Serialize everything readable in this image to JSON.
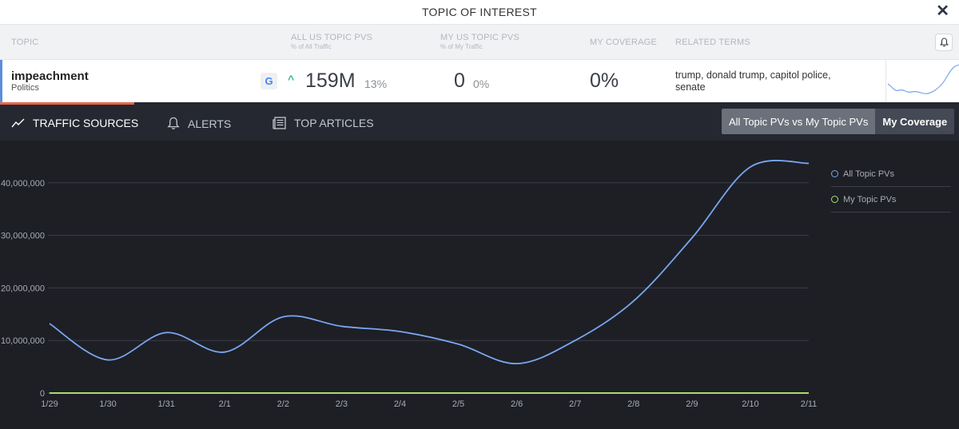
{
  "window": {
    "title": "TOPIC OF INTEREST",
    "close_icon": "close-icon"
  },
  "columns": {
    "topic": "TOPIC",
    "all_us": "ALL US TOPIC PVS",
    "all_us_sub": "% of All Traffic",
    "my_us": "MY US TOPIC PVS",
    "my_us_sub": "% of My Traffic",
    "coverage": "MY COVERAGE",
    "related": "RELATED TERMS"
  },
  "row": {
    "topic": "impeachment",
    "category": "Politics",
    "source_badge": "G",
    "all_pvs": "159M",
    "all_pct": "13%",
    "my_pvs": "0",
    "my_pct": "0%",
    "coverage": "0%",
    "related": "trump, donald trump, capitol police, senate"
  },
  "tabs": [
    {
      "label": "TRAFFIC SOURCES",
      "icon": "trend-line-icon",
      "active": true
    },
    {
      "label": "ALERTS",
      "icon": "bell-icon",
      "active": false
    },
    {
      "label": "TOP ARTICLES",
      "icon": "newspaper-icon",
      "active": false
    }
  ],
  "toggle": {
    "option1": "All Topic PVs vs My Topic PVs",
    "option2": "My Coverage",
    "selected": "My Coverage"
  },
  "colors": {
    "accent_blue": "#7aa6f0",
    "accent_green": "#a6e069",
    "progress": "#e8674a"
  },
  "chart_data": {
    "type": "line",
    "categories": [
      "1/29",
      "1/30",
      "1/31",
      "2/1",
      "2/2",
      "2/3",
      "2/4",
      "2/5",
      "2/6",
      "2/7",
      "2/8",
      "2/9",
      "2/10",
      "2/11"
    ],
    "series": [
      {
        "name": "All Topic PVs",
        "color": "#7aa6f0",
        "values": [
          13200000,
          6300000,
          11500000,
          7800000,
          14500000,
          12700000,
          11700000,
          9300000,
          5600000,
          10000000,
          17500000,
          29500000,
          43000000,
          43700000
        ]
      },
      {
        "name": "My Topic PVs",
        "color": "#a6e069",
        "values": [
          0,
          0,
          0,
          0,
          0,
          0,
          0,
          0,
          0,
          0,
          0,
          0,
          0,
          0
        ]
      }
    ],
    "y_ticks": [
      "0",
      "10,000,000",
      "20,000,000",
      "30,000,000",
      "40,000,000"
    ],
    "y_tick_values": [
      0,
      10000000,
      20000000,
      30000000,
      40000000
    ],
    "ylim": [
      0,
      46500000
    ],
    "grid": true,
    "legend": "top-right"
  }
}
